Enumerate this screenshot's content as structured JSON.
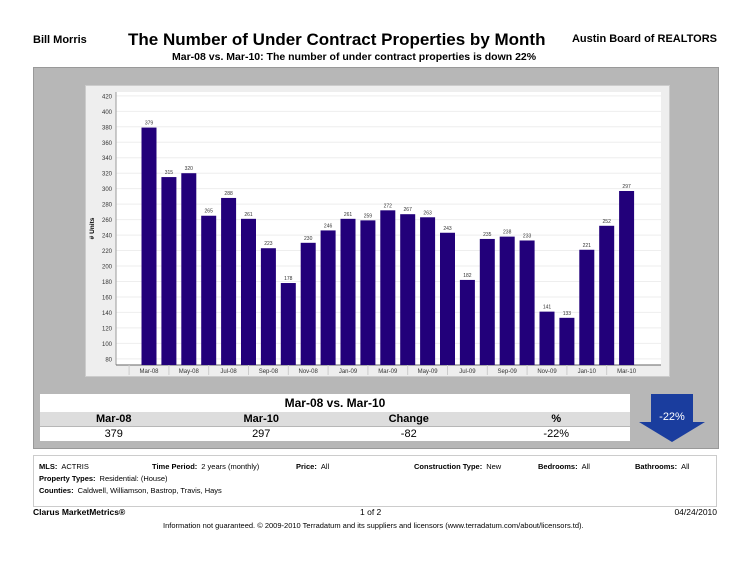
{
  "header": {
    "agent": "Bill Morris",
    "title": "The Number of Under Contract Properties by Month",
    "board": "Austin Board of REALTORS",
    "subtitle": "Mar-08 vs. Mar-10:  The number of under contract properties is down 22%"
  },
  "chart_data": {
    "type": "bar",
    "title": "The Number of Under Contract Properties by Month",
    "xlabel": "",
    "ylabel": "# Units",
    "ylim": [
      72,
      425
    ],
    "yticks": [
      80,
      100,
      120,
      140,
      160,
      180,
      200,
      220,
      240,
      260,
      280,
      300,
      320,
      340,
      360,
      380,
      400,
      420
    ],
    "grid": true,
    "bar_color": "#22007a",
    "categories": [
      "Mar-08",
      "Apr-08",
      "May-08",
      "Jun-08",
      "Jul-08",
      "Aug-08",
      "Sep-08",
      "Oct-08",
      "Nov-08",
      "Dec-08",
      "Jan-09",
      "Feb-09",
      "Mar-09",
      "Apr-09",
      "May-09",
      "Jun-09",
      "Jul-09",
      "Aug-09",
      "Sep-09",
      "Oct-09",
      "Nov-09",
      "Dec-09",
      "Jan-10",
      "Feb-10",
      "Mar-10"
    ],
    "xtick_labels": [
      "Mar-08",
      "May-08",
      "Jul-08",
      "Sep-08",
      "Nov-08",
      "Jan-09",
      "Mar-09",
      "May-09",
      "Jul-09",
      "Sep-09",
      "Nov-09",
      "Jan-10",
      "Mar-10"
    ],
    "values": [
      379,
      315,
      320,
      265,
      288,
      261,
      223,
      178,
      230,
      246,
      261,
      259,
      272,
      267,
      263,
      243,
      182,
      235,
      238,
      233,
      141,
      133,
      221,
      252,
      297
    ]
  },
  "summary": {
    "heading": "Mar-08 vs. Mar-10",
    "labels": [
      "Mar-08",
      "Mar-10",
      "Change",
      "%"
    ],
    "values": [
      "379",
      "297",
      "-82",
      "-22%"
    ],
    "badge": "-22%",
    "arrow_color": "#1a3d9e"
  },
  "info": {
    "mls_label": "MLS:",
    "mls": "ACTRIS",
    "period_label": "Time Period:",
    "period": "2 years (monthly)",
    "price_label": "Price:",
    "price": "All",
    "construction_label": "Construction Type:",
    "construction": "New",
    "bedrooms_label": "Bedrooms:",
    "bedrooms": "All",
    "bathrooms_label": "Bathrooms:",
    "bathrooms": "All",
    "ptype_label": "Property Types:",
    "ptype": "Residential: (House)",
    "counties_label": "Counties:",
    "counties": "Caldwell, Williamson, Bastrop, Travis, Hays"
  },
  "footer": {
    "brand": "Clarus MarketMetrics®",
    "page": "1 of 2",
    "date": "04/24/2010",
    "disclaimer": "Information not guaranteed.  © 2009-2010 Terradatum and its suppliers and licensors (www.terradatum.com/about/licensors.td)."
  }
}
